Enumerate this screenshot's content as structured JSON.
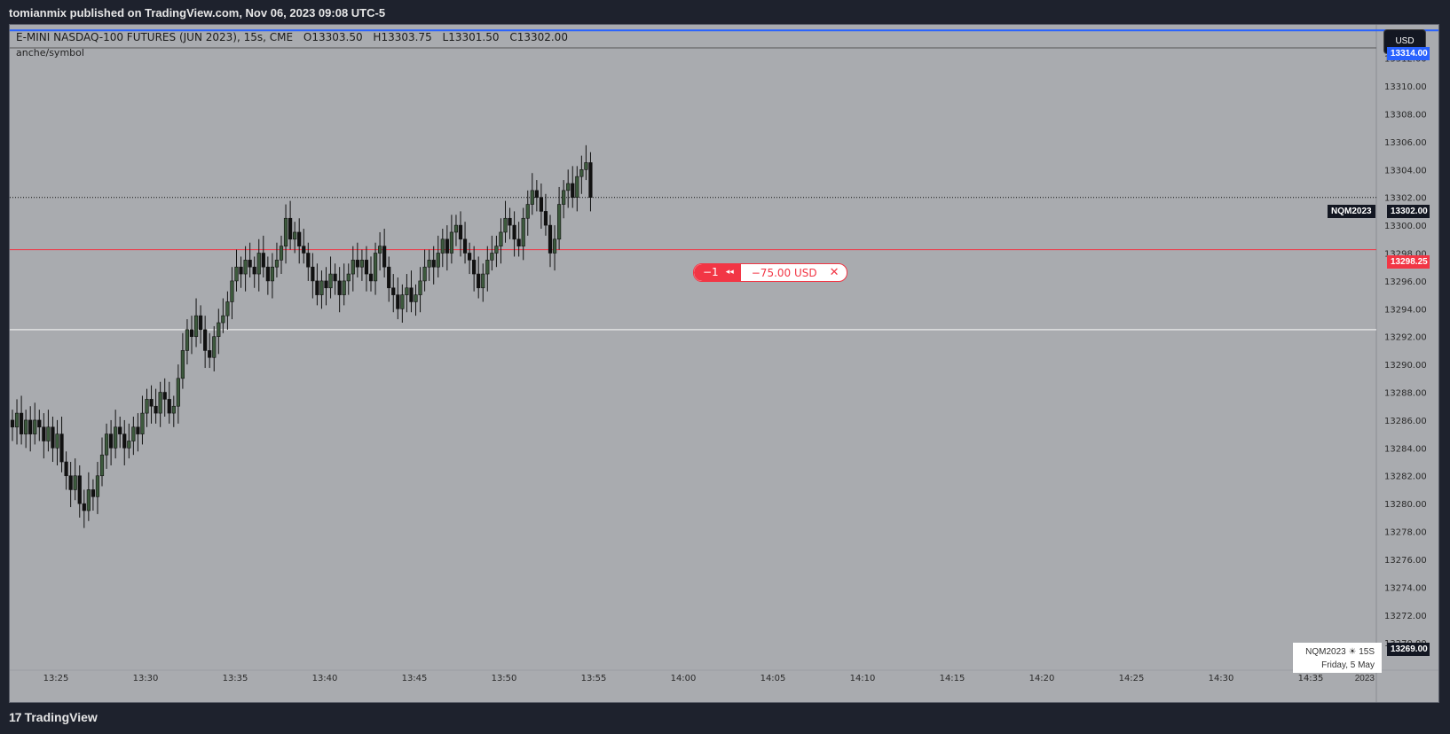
{
  "header": {
    "publish_text": "tomianmix published on TradingView.com, Nov 06, 2023 09:08 UTC-5"
  },
  "legend": {
    "title": "E-MINI NASDAQ-100 FUTURES (JUN 2023), 15s, CME",
    "open": "O13303.50",
    "high": "H13303.75",
    "low": "L13301.50",
    "close": "C13302.00",
    "sub_label": "anche/symbol"
  },
  "currency_button": "USD",
  "order": {
    "qty": "−1",
    "pnl": "−75.00 USD",
    "close_glyph": "✕",
    "reverse_glyph": "◂◂"
  },
  "price_tags": {
    "top": "13314.00",
    "last_symbol": "NQM2023",
    "last": "13302.00",
    "order": "13298.25",
    "bottom": "13269.00"
  },
  "symbol_box": {
    "line1": "NQM2023 ☀ 15S",
    "line2": "Friday, 5 May 2023"
  },
  "footer": {
    "brand": "TradingView",
    "logo_glyph": "17"
  },
  "colors": {
    "background": "#a9abaf",
    "up": "#3d5a3d",
    "down": "#111111",
    "order_line": "#f23645",
    "alert_line": "#2962ff",
    "level_line": "#e0e0e0"
  },
  "chart_data": {
    "type": "candlestick",
    "symbol": "NQM2023",
    "interval": "15s",
    "x_ticks": [
      "13:25",
      "13:30",
      "13:35",
      "13:40",
      "13:45",
      "13:50",
      "13:55",
      "14:00",
      "14:05",
      "14:10",
      "14:15",
      "14:20",
      "14:25",
      "14:30",
      "14:35"
    ],
    "y_ticks": [
      "13312.00",
      "13310.00",
      "13308.00",
      "13306.00",
      "13304.00",
      "13302.00",
      "13300.00",
      "13298.00",
      "13296.00",
      "13294.00",
      "13292.00",
      "13290.00",
      "13288.00",
      "13286.00",
      "13284.00",
      "13282.00",
      "13280.00",
      "13278.00",
      "13276.00",
      "13274.00",
      "13272.00",
      "13270.00"
    ],
    "ylim": [
      13268.8,
      13314.4
    ],
    "horizontal_lines": [
      {
        "price": 13314.0,
        "kind": "alert"
      },
      {
        "price": 13302.0,
        "kind": "last",
        "style": "dotted"
      },
      {
        "price": 13298.25,
        "kind": "order"
      },
      {
        "price": 13292.5,
        "kind": "level"
      }
    ],
    "candles_close": [
      13285.5,
      13286.5,
      13285.0,
      13286.0,
      13285.0,
      13286.0,
      13285.5,
      13284.5,
      13285.5,
      13284.0,
      13285.0,
      13283.0,
      13282.0,
      13281.0,
      13282.0,
      13280.0,
      13279.5,
      13281.0,
      13280.5,
      13282.0,
      13283.5,
      13285.0,
      13284.0,
      13285.5,
      13285.0,
      13284.0,
      13284.5,
      13285.5,
      13285.0,
      13286.5,
      13287.5,
      13287.0,
      13286.5,
      13288.0,
      13287.5,
      13286.5,
      13287.0,
      13289.0,
      13291.0,
      13292.5,
      13292.0,
      13293.5,
      13292.5,
      13291.0,
      13290.5,
      13292.0,
      13293.0,
      13293.5,
      13294.5,
      13296.0,
      13297.0,
      13296.5,
      13297.5,
      13297.0,
      13296.5,
      13298.0,
      13297.0,
      13296.0,
      13297.0,
      13297.5,
      13298.5,
      13300.5,
      13299.0,
      13299.5,
      13298.5,
      13298.0,
      13297.0,
      13296.0,
      13295.0,
      13296.0,
      13295.5,
      13296.5,
      13296.0,
      13295.0,
      13296.0,
      13296.5,
      13297.5,
      13297.0,
      13297.5,
      13296.5,
      13296.0,
      13298.0,
      13298.5,
      13297.0,
      13295.5,
      13295.0,
      13294.0,
      13295.0,
      13295.5,
      13294.5,
      13295.0,
      13296.0,
      13297.0,
      13297.5,
      13297.0,
      13298.0,
      13299.0,
      13298.0,
      13299.5,
      13300.0,
      13299.0,
      13298.0,
      13297.5,
      13296.5,
      13295.5,
      13296.5,
      13297.5,
      13298.0,
      13298.5,
      13299.5,
      13300.5,
      13300.0,
      13299.0,
      13298.5,
      13300.5,
      13301.5,
      13302.5,
      13302.0,
      13301.0,
      13300.0,
      13298.0,
      13299.0,
      13301.5,
      13302.5,
      13303.0,
      13302.0,
      13303.5,
      13304.0,
      13304.5,
      13302.0
    ]
  }
}
